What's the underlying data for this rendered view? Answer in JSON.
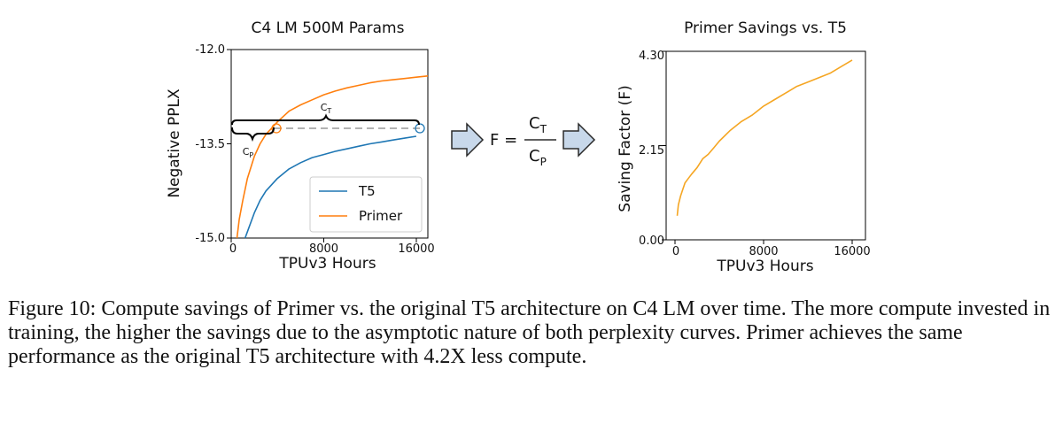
{
  "figure": {
    "caption": "Figure 10: Compute savings of Primer  vs. the original T5 architecture on C4 LM over time. The more compute invested in training, the higher the savings due to the asymptotic nature of both perplexity curves. Primer achieves the same performance as the original T5 architecture with 4.2X less compute.",
    "equation": {
      "lhs": "F =",
      "numerator": "C",
      "numerator_sub": "T",
      "denominator": "C",
      "denominator_sub": "P"
    },
    "annotations": {
      "ct_label": "C",
      "ct_sub": "T",
      "cp_label": "C",
      "cp_sub": "P"
    }
  },
  "colors": {
    "t5": "#1f77b4",
    "primer": "#ff7f0e",
    "saving": "#f5a623",
    "arrow_fill": "#c8d8ea",
    "arrow_stroke": "#2a2a2a"
  },
  "chart_data": [
    {
      "type": "line",
      "title": "C4 LM 500M Params",
      "xlabel": "TPUv3 Hours",
      "ylabel": "Negative PPLX",
      "xlim": [
        0,
        17000
      ],
      "ylim": [
        -15.0,
        -12.0
      ],
      "xticks": [
        "0",
        "8000",
        "16000"
      ],
      "yticks": [
        "-12.0",
        "-13.5",
        "-15.0"
      ],
      "legend": "lower-right",
      "series": [
        {
          "name": "T5",
          "x": [
            1200,
            1500,
            2000,
            2500,
            3000,
            4000,
            5000,
            6000,
            7000,
            8000,
            9000,
            10000,
            11000,
            12000,
            13000,
            14000,
            15000,
            16000
          ],
          "y": [
            -15.0,
            -14.85,
            -14.6,
            -14.4,
            -14.25,
            -14.05,
            -13.9,
            -13.8,
            -13.72,
            -13.67,
            -13.62,
            -13.58,
            -13.54,
            -13.5,
            -13.47,
            -13.44,
            -13.41,
            -13.38
          ]
        },
        {
          "name": "Primer",
          "x": [
            500,
            700,
            1000,
            1400,
            2000,
            2500,
            3000,
            3500,
            4000,
            5000,
            6000,
            7000,
            8000,
            9000,
            10000,
            11000,
            12000,
            13000,
            14000,
            15000,
            16000,
            17000
          ],
          "y": [
            -15.0,
            -14.7,
            -14.4,
            -14.05,
            -13.7,
            -13.5,
            -13.35,
            -13.25,
            -13.15,
            -12.98,
            -12.88,
            -12.8,
            -12.72,
            -12.66,
            -12.61,
            -12.57,
            -12.53,
            -12.5,
            -12.48,
            -12.46,
            -12.44,
            -12.42
          ]
        }
      ]
    },
    {
      "type": "line",
      "title": "Primer Savings vs. T5",
      "xlabel": "TPUv3 Hours",
      "ylabel": "Saving Factor (F)",
      "xlim": [
        0,
        18000
      ],
      "ylim": [
        0.0,
        4.3
      ],
      "xticks": [
        "0",
        "8000",
        "16000"
      ],
      "yticks": [
        "0.00",
        "2.15",
        "4.30"
      ],
      "series": [
        {
          "x": [
            200,
            300,
            500,
            700,
            900,
            1200,
            1500,
            2000,
            2500,
            3000,
            3500,
            4000,
            5000,
            6000,
            7000,
            8000,
            9000,
            10000,
            11000,
            12000,
            13000,
            14000,
            15000,
            16000
          ],
          "y": [
            0.55,
            0.8,
            1.0,
            1.15,
            1.3,
            1.4,
            1.5,
            1.65,
            1.85,
            1.95,
            2.1,
            2.25,
            2.5,
            2.7,
            2.85,
            3.05,
            3.2,
            3.35,
            3.5,
            3.6,
            3.7,
            3.8,
            3.95,
            4.1
          ]
        }
      ]
    }
  ]
}
